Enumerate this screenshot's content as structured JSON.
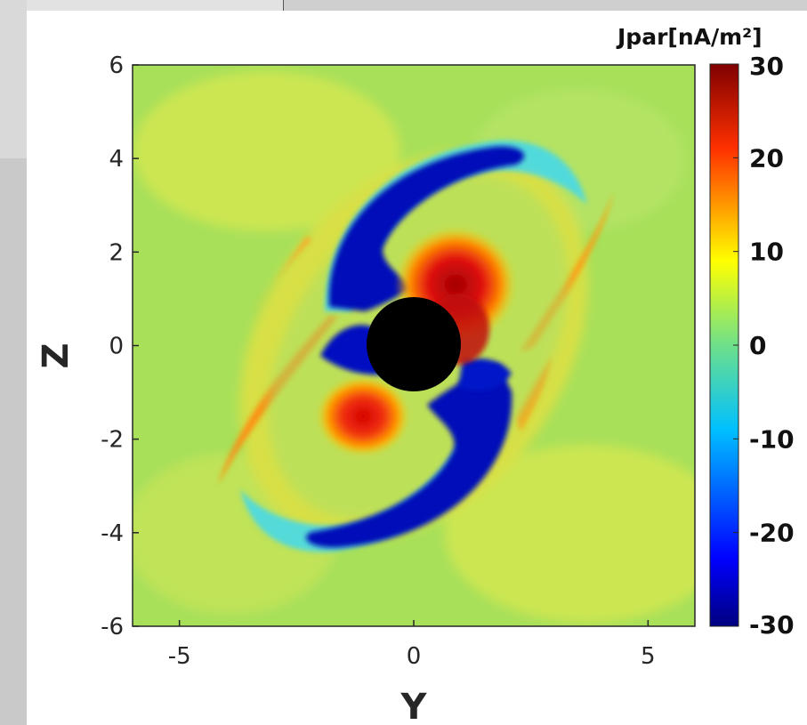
{
  "chart_data": {
    "type": "heatmap",
    "xlabel": "Y",
    "ylabel": "Z",
    "xlim": [
      -6,
      6
    ],
    "ylim": [
      -6,
      6
    ],
    "x_ticks": [
      -5,
      0,
      5
    ],
    "y_ticks": [
      -6,
      -4,
      -2,
      0,
      2,
      4,
      6
    ],
    "colorbar": {
      "title": "Jpar[nA/m²]",
      "range": [
        -30,
        30
      ],
      "ticks": [
        "30",
        "20",
        "10",
        "0",
        "-10",
        "-20",
        "-30"
      ],
      "colormap": "jet"
    },
    "background_value": 5,
    "features": [
      {
        "name": "planet-body",
        "shape": "disk",
        "center": [
          0,
          0
        ],
        "radius": 1.0,
        "color": "#000000"
      },
      {
        "name": "red-lobe-upper-right",
        "center": [
          0.8,
          1.3
        ],
        "peak_value": 28
      },
      {
        "name": "red-lobe-lower-left",
        "center": [
          -1.0,
          -1.6
        ],
        "peak_value": 22
      },
      {
        "name": "blue-arc-upper-left",
        "center": [
          -0.6,
          1.8
        ],
        "peak_value": -30
      },
      {
        "name": "blue-arc-lower-right",
        "center": [
          0.6,
          -1.8
        ],
        "peak_value": -30
      },
      {
        "name": "orange-band-right",
        "center": [
          2.6,
          1.5
        ],
        "peak_value": 15
      },
      {
        "name": "orange-band-left",
        "center": [
          -2.6,
          -1.5
        ],
        "peak_value": 15
      }
    ]
  }
}
